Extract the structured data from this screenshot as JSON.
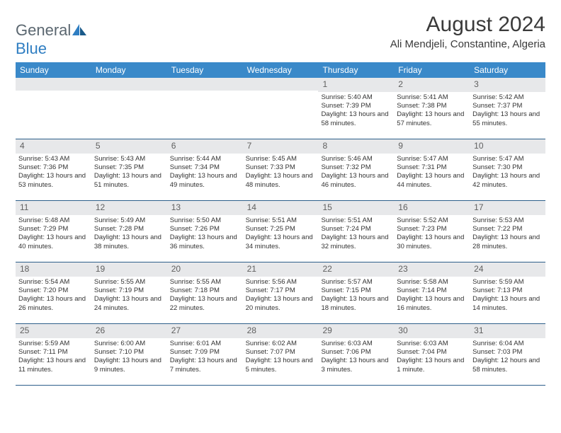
{
  "logo": {
    "general": "General",
    "blue": "Blue"
  },
  "title": "August 2024",
  "location": "Ali Mendjeli, Constantine, Algeria",
  "colors": {
    "header_bg": "#3a89c9",
    "header_text": "#ffffff",
    "daynum_bg": "#e7e8ea",
    "week_border": "#2d5f8a",
    "logo_gray": "#5b6770",
    "logo_blue": "#2f7ec2",
    "text": "#333333",
    "title_color": "#3a3a3a"
  },
  "weekdays": [
    "Sunday",
    "Monday",
    "Tuesday",
    "Wednesday",
    "Thursday",
    "Friday",
    "Saturday"
  ],
  "weeks": [
    [
      {
        "n": "",
        "sr": "",
        "ss": "",
        "dl": ""
      },
      {
        "n": "",
        "sr": "",
        "ss": "",
        "dl": ""
      },
      {
        "n": "",
        "sr": "",
        "ss": "",
        "dl": ""
      },
      {
        "n": "",
        "sr": "",
        "ss": "",
        "dl": ""
      },
      {
        "n": "1",
        "sr": "Sunrise: 5:40 AM",
        "ss": "Sunset: 7:39 PM",
        "dl": "Daylight: 13 hours and 58 minutes."
      },
      {
        "n": "2",
        "sr": "Sunrise: 5:41 AM",
        "ss": "Sunset: 7:38 PM",
        "dl": "Daylight: 13 hours and 57 minutes."
      },
      {
        "n": "3",
        "sr": "Sunrise: 5:42 AM",
        "ss": "Sunset: 7:37 PM",
        "dl": "Daylight: 13 hours and 55 minutes."
      }
    ],
    [
      {
        "n": "4",
        "sr": "Sunrise: 5:43 AM",
        "ss": "Sunset: 7:36 PM",
        "dl": "Daylight: 13 hours and 53 minutes."
      },
      {
        "n": "5",
        "sr": "Sunrise: 5:43 AM",
        "ss": "Sunset: 7:35 PM",
        "dl": "Daylight: 13 hours and 51 minutes."
      },
      {
        "n": "6",
        "sr": "Sunrise: 5:44 AM",
        "ss": "Sunset: 7:34 PM",
        "dl": "Daylight: 13 hours and 49 minutes."
      },
      {
        "n": "7",
        "sr": "Sunrise: 5:45 AM",
        "ss": "Sunset: 7:33 PM",
        "dl": "Daylight: 13 hours and 48 minutes."
      },
      {
        "n": "8",
        "sr": "Sunrise: 5:46 AM",
        "ss": "Sunset: 7:32 PM",
        "dl": "Daylight: 13 hours and 46 minutes."
      },
      {
        "n": "9",
        "sr": "Sunrise: 5:47 AM",
        "ss": "Sunset: 7:31 PM",
        "dl": "Daylight: 13 hours and 44 minutes."
      },
      {
        "n": "10",
        "sr": "Sunrise: 5:47 AM",
        "ss": "Sunset: 7:30 PM",
        "dl": "Daylight: 13 hours and 42 minutes."
      }
    ],
    [
      {
        "n": "11",
        "sr": "Sunrise: 5:48 AM",
        "ss": "Sunset: 7:29 PM",
        "dl": "Daylight: 13 hours and 40 minutes."
      },
      {
        "n": "12",
        "sr": "Sunrise: 5:49 AM",
        "ss": "Sunset: 7:28 PM",
        "dl": "Daylight: 13 hours and 38 minutes."
      },
      {
        "n": "13",
        "sr": "Sunrise: 5:50 AM",
        "ss": "Sunset: 7:26 PM",
        "dl": "Daylight: 13 hours and 36 minutes."
      },
      {
        "n": "14",
        "sr": "Sunrise: 5:51 AM",
        "ss": "Sunset: 7:25 PM",
        "dl": "Daylight: 13 hours and 34 minutes."
      },
      {
        "n": "15",
        "sr": "Sunrise: 5:51 AM",
        "ss": "Sunset: 7:24 PM",
        "dl": "Daylight: 13 hours and 32 minutes."
      },
      {
        "n": "16",
        "sr": "Sunrise: 5:52 AM",
        "ss": "Sunset: 7:23 PM",
        "dl": "Daylight: 13 hours and 30 minutes."
      },
      {
        "n": "17",
        "sr": "Sunrise: 5:53 AM",
        "ss": "Sunset: 7:22 PM",
        "dl": "Daylight: 13 hours and 28 minutes."
      }
    ],
    [
      {
        "n": "18",
        "sr": "Sunrise: 5:54 AM",
        "ss": "Sunset: 7:20 PM",
        "dl": "Daylight: 13 hours and 26 minutes."
      },
      {
        "n": "19",
        "sr": "Sunrise: 5:55 AM",
        "ss": "Sunset: 7:19 PM",
        "dl": "Daylight: 13 hours and 24 minutes."
      },
      {
        "n": "20",
        "sr": "Sunrise: 5:55 AM",
        "ss": "Sunset: 7:18 PM",
        "dl": "Daylight: 13 hours and 22 minutes."
      },
      {
        "n": "21",
        "sr": "Sunrise: 5:56 AM",
        "ss": "Sunset: 7:17 PM",
        "dl": "Daylight: 13 hours and 20 minutes."
      },
      {
        "n": "22",
        "sr": "Sunrise: 5:57 AM",
        "ss": "Sunset: 7:15 PM",
        "dl": "Daylight: 13 hours and 18 minutes."
      },
      {
        "n": "23",
        "sr": "Sunrise: 5:58 AM",
        "ss": "Sunset: 7:14 PM",
        "dl": "Daylight: 13 hours and 16 minutes."
      },
      {
        "n": "24",
        "sr": "Sunrise: 5:59 AM",
        "ss": "Sunset: 7:13 PM",
        "dl": "Daylight: 13 hours and 14 minutes."
      }
    ],
    [
      {
        "n": "25",
        "sr": "Sunrise: 5:59 AM",
        "ss": "Sunset: 7:11 PM",
        "dl": "Daylight: 13 hours and 11 minutes."
      },
      {
        "n": "26",
        "sr": "Sunrise: 6:00 AM",
        "ss": "Sunset: 7:10 PM",
        "dl": "Daylight: 13 hours and 9 minutes."
      },
      {
        "n": "27",
        "sr": "Sunrise: 6:01 AM",
        "ss": "Sunset: 7:09 PM",
        "dl": "Daylight: 13 hours and 7 minutes."
      },
      {
        "n": "28",
        "sr": "Sunrise: 6:02 AM",
        "ss": "Sunset: 7:07 PM",
        "dl": "Daylight: 13 hours and 5 minutes."
      },
      {
        "n": "29",
        "sr": "Sunrise: 6:03 AM",
        "ss": "Sunset: 7:06 PM",
        "dl": "Daylight: 13 hours and 3 minutes."
      },
      {
        "n": "30",
        "sr": "Sunrise: 6:03 AM",
        "ss": "Sunset: 7:04 PM",
        "dl": "Daylight: 13 hours and 1 minute."
      },
      {
        "n": "31",
        "sr": "Sunrise: 6:04 AM",
        "ss": "Sunset: 7:03 PM",
        "dl": "Daylight: 12 hours and 58 minutes."
      }
    ]
  ]
}
